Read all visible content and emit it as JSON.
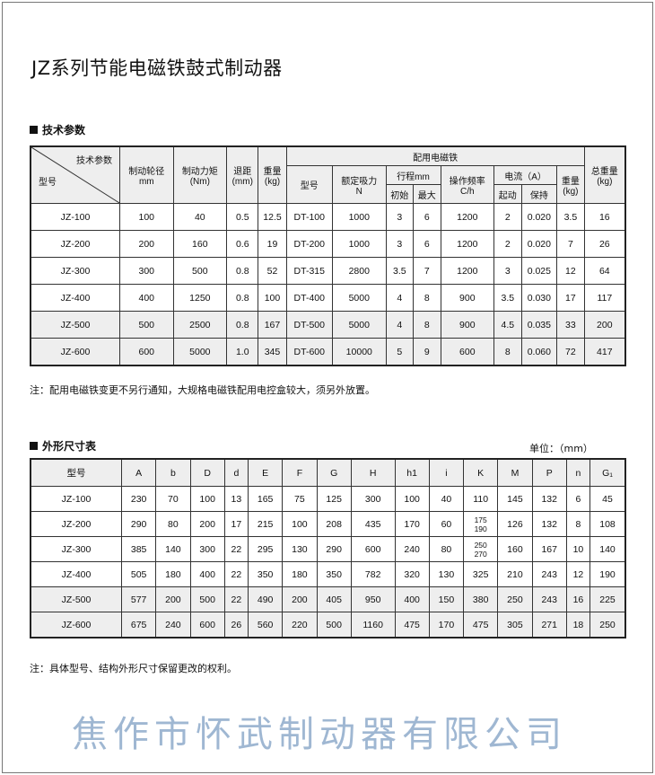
{
  "title": "JZ系列节能电磁铁鼓式制动器",
  "tech": {
    "section_title": "技术参数",
    "diag_top": "技术参数",
    "diag_bottom": "型号",
    "headers": {
      "wheel_a": "制动轮径",
      "wheel_b": "mm",
      "torque_a": "制动力矩",
      "torque_b": "(Nm)",
      "retreat_a": "退距",
      "retreat_b": "(mm)",
      "weight_a": "重量",
      "weight_b": "(kg)",
      "magnet_group": "配用电磁铁",
      "m_model": "型号",
      "m_force_a": "额定吸力",
      "m_force_b": "N",
      "m_stroke": "行程mm",
      "m_stroke_init": "初始",
      "m_stroke_max": "最大",
      "m_freq_a": "操作频率",
      "m_freq_b": "C/h",
      "m_current": "电流（A）",
      "m_current_start": "起动",
      "m_current_hold": "保持",
      "m_weight_a": "重量",
      "m_weight_b": "(kg)",
      "total_a": "总重量",
      "total_b": "(kg)"
    },
    "rows": [
      [
        "JZ-100",
        "100",
        "40",
        "0.5",
        "12.5",
        "DT-100",
        "1000",
        "3",
        "6",
        "1200",
        "2",
        "0.020",
        "3.5",
        "16"
      ],
      [
        "JZ-200",
        "200",
        "160",
        "0.6",
        "19",
        "DT-200",
        "1000",
        "3",
        "6",
        "1200",
        "2",
        "0.020",
        "7",
        "26"
      ],
      [
        "JZ-300",
        "300",
        "500",
        "0.8",
        "52",
        "DT-315",
        "2800",
        "3.5",
        "7",
        "1200",
        "3",
        "0.025",
        "12",
        "64"
      ],
      [
        "JZ-400",
        "400",
        "1250",
        "0.8",
        "100",
        "DT-400",
        "5000",
        "4",
        "8",
        "900",
        "3.5",
        "0.030",
        "17",
        "117"
      ],
      [
        "JZ-500",
        "500",
        "2500",
        "0.8",
        "167",
        "DT-500",
        "5000",
        "4",
        "8",
        "900",
        "4.5",
        "0.035",
        "33",
        "200"
      ],
      [
        "JZ-600",
        "600",
        "5000",
        "1.0",
        "345",
        "DT-600",
        "10000",
        "5",
        "9",
        "600",
        "8",
        "0.060",
        "72",
        "417"
      ]
    ],
    "note": "注：配用电磁铁变更不另行通知，大规格电磁铁配用电控盒较大，须另外放置。"
  },
  "dims": {
    "section_title": "外形尺寸表",
    "unit": "单位：（mm）",
    "headers": [
      "型号",
      "A",
      "b",
      "D",
      "d",
      "E",
      "F",
      "G",
      "H",
      "h1",
      "i",
      "K",
      "M",
      "P",
      "n",
      "G₁"
    ],
    "rows": [
      [
        "JZ-100",
        "230",
        "70",
        "100",
        "13",
        "165",
        "75",
        "125",
        "300",
        "100",
        "40",
        "110",
        "145",
        "132",
        "6",
        "45"
      ],
      [
        "JZ-200",
        "290",
        "80",
        "200",
        "17",
        "215",
        "100",
        "208",
        "435",
        "170",
        "60",
        "175 190",
        "126",
        "132",
        "8",
        "108"
      ],
      [
        "JZ-300",
        "385",
        "140",
        "300",
        "22",
        "295",
        "130",
        "290",
        "600",
        "240",
        "80",
        "250 270",
        "160",
        "167",
        "10",
        "140"
      ],
      [
        "JZ-400",
        "505",
        "180",
        "400",
        "22",
        "350",
        "180",
        "350",
        "782",
        "320",
        "130",
        "325",
        "210",
        "243",
        "12",
        "190"
      ],
      [
        "JZ-500",
        "577",
        "200",
        "500",
        "22",
        "490",
        "200",
        "405",
        "950",
        "400",
        "150",
        "380",
        "250",
        "243",
        "16",
        "225"
      ],
      [
        "JZ-600",
        "675",
        "240",
        "600",
        "26",
        "560",
        "220",
        "500",
        "1160",
        "475",
        "170",
        "475",
        "305",
        "271",
        "18",
        "250"
      ]
    ],
    "note": "注：具体型号、结构外形尺寸保留更改的权利。"
  },
  "watermark": "焦作市怀武制动器有限公司",
  "colors": {
    "header_bg": "#eeeeee",
    "watermark": "#7f9fc4"
  }
}
